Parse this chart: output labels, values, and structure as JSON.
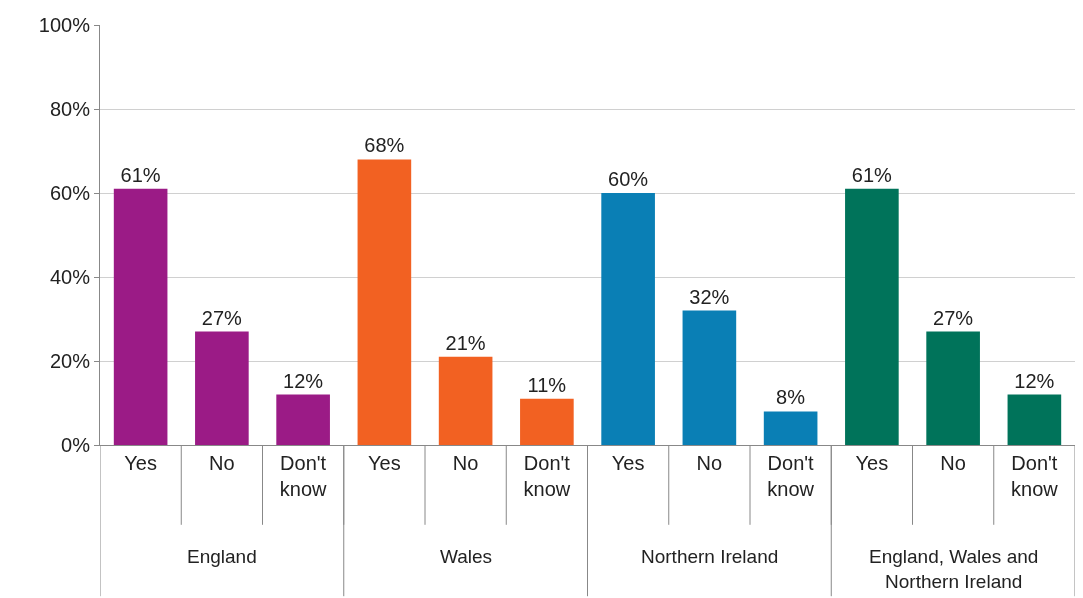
{
  "chart_data": {
    "type": "bar",
    "categories": [
      "Yes",
      "No",
      "Don't know",
      "Yes",
      "No",
      "Don't know",
      "Yes",
      "No",
      "Don't know",
      "Yes",
      "No",
      "Don't know"
    ],
    "values": [
      61,
      27,
      12,
      68,
      21,
      11,
      60,
      32,
      8,
      61,
      27,
      12
    ],
    "colors": [
      "#9b1b86",
      "#9b1b86",
      "#9b1b86",
      "#f26122",
      "#f26122",
      "#f26122",
      "#0a7fb5",
      "#0a7fb5",
      "#0a7fb5",
      "#00735a",
      "#00735a",
      "#00735a"
    ],
    "value_labels": [
      "61%",
      "27%",
      "12%",
      "68%",
      "21%",
      "11%",
      "60%",
      "32%",
      "8%",
      "61%",
      "27%",
      "12%"
    ],
    "annotations": [
      "England",
      "Wales",
      "Northern Ireland",
      "England, Wales and Northern Ireland"
    ],
    "ylim": [
      0,
      100
    ],
    "yticks": [
      {
        "value": 0,
        "label": "0%"
      },
      {
        "value": 20,
        "label": "20%"
      },
      {
        "value": 40,
        "label": "40%"
      },
      {
        "value": 60,
        "label": "60%"
      },
      {
        "value": 80,
        "label": "80%"
      },
      {
        "value": 100,
        "label": "100%"
      }
    ],
    "grid": "y"
  }
}
